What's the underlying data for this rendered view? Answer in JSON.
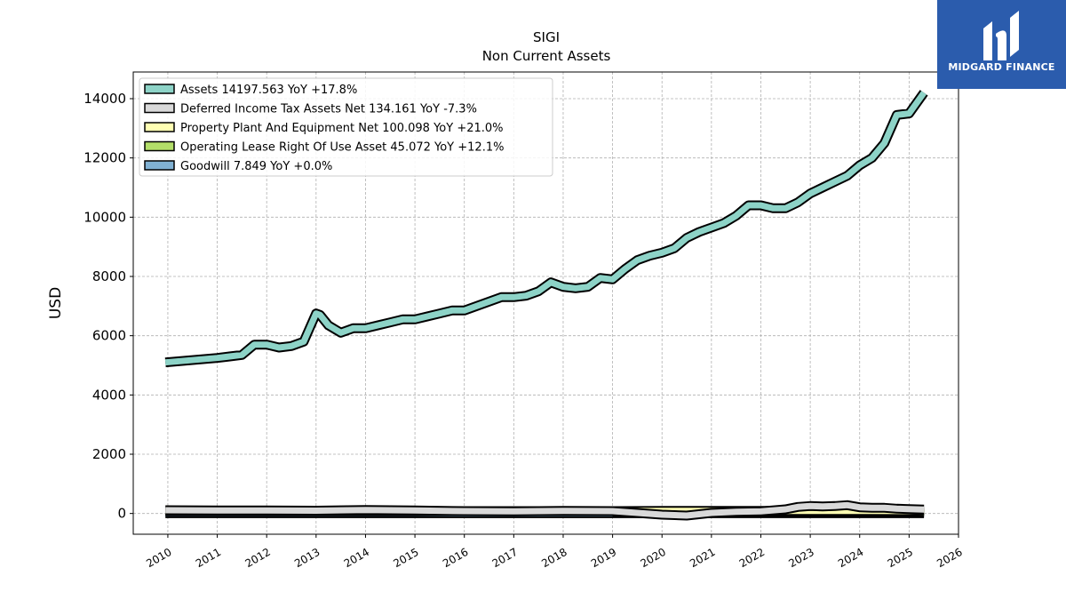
{
  "brand": {
    "name": "MIDGARD FINANCE",
    "bg_color": "#2b5cad",
    "icon": "midgard-logo-icon"
  },
  "chart_data": {
    "type": "line",
    "title": "SIGI",
    "subtitle": "Non Current  Assets",
    "xlabel": "",
    "ylabel": "USD",
    "xlim": [
      2009.3,
      2026.0
    ],
    "ylim": [
      -700,
      14900
    ],
    "x_ticks": [
      "2010",
      "2011",
      "2012",
      "2013",
      "2014",
      "2015",
      "2016",
      "2017",
      "2018",
      "2019",
      "2020",
      "2021",
      "2022",
      "2023",
      "2024",
      "2025",
      "2026"
    ],
    "y_ticks": [
      0,
      2000,
      4000,
      6000,
      8000,
      10000,
      12000,
      14000
    ],
    "y_tick_labels": [
      "0",
      "2000",
      "4000",
      "6000",
      "8000",
      "10000",
      "12000",
      "14000"
    ],
    "grid": true,
    "legend_position": "top-left",
    "series": [
      {
        "name": "Assets",
        "legend": "Assets  14197.563 YoY +17.8%",
        "color": "#8dd3c7",
        "x": [
          2009.95,
          2011.0,
          2011.25,
          2011.5,
          2011.75,
          2012.0,
          2012.25,
          2012.5,
          2012.75,
          2013.0,
          2013.08,
          2013.25,
          2013.5,
          2013.75,
          2014.0,
          2014.25,
          2014.5,
          2014.75,
          2015.0,
          2015.25,
          2015.5,
          2015.75,
          2016.0,
          2016.25,
          2016.5,
          2016.75,
          2017.0,
          2017.25,
          2017.5,
          2017.75,
          2018.0,
          2018.25,
          2018.5,
          2018.75,
          2019.0,
          2019.25,
          2019.5,
          2019.75,
          2020.0,
          2020.25,
          2020.5,
          2020.75,
          2021.0,
          2021.25,
          2021.5,
          2021.75,
          2022.0,
          2022.25,
          2022.5,
          2022.75,
          2023.0,
          2023.25,
          2023.5,
          2023.75,
          2024.0,
          2024.25,
          2024.5,
          2024.75,
          2025.0,
          2025.3
        ],
        "values": [
          5100,
          5250,
          5300,
          5350,
          5700,
          5700,
          5600,
          5650,
          5800,
          6750,
          6700,
          6350,
          6100,
          6250,
          6250,
          6350,
          6450,
          6550,
          6550,
          6650,
          6750,
          6850,
          6850,
          7000,
          7150,
          7300,
          7300,
          7350,
          7500,
          7800,
          7650,
          7600,
          7650,
          7950,
          7900,
          8250,
          8550,
          8700,
          8800,
          8950,
          9300,
          9500,
          9650,
          9800,
          10050,
          10400,
          10400,
          10300,
          10300,
          10500,
          10800,
          11000,
          11200,
          11400,
          11750,
          12000,
          12500,
          13450,
          13500,
          14200
        ]
      },
      {
        "name": "Deferred Income Tax Assets Net",
        "legend": "Deferred Income Tax Assets Net  134.161 YoY -7.3%",
        "color": "#d9d9d9",
        "x": [
          2009.95,
          2011.0,
          2012.0,
          2013.0,
          2014.0,
          2015.0,
          2016.0,
          2017.0,
          2018.0,
          2019.0,
          2020.0,
          2020.5,
          2021.0,
          2021.5,
          2022.0,
          2022.5,
          2022.75,
          2023.0,
          2023.25,
          2023.5,
          2023.75,
          2024.0,
          2024.25,
          2024.5,
          2024.75,
          2025.0,
          2025.3
        ],
        "values": [
          110,
          105,
          100,
          95,
          120,
          100,
          80,
          70,
          90,
          80,
          -40,
          -70,
          20,
          60,
          70,
          140,
          220,
          250,
          240,
          250,
          280,
          210,
          190,
          190,
          160,
          150,
          134
        ]
      },
      {
        "name": "Property Plant And Equipment Net",
        "legend": "Property Plant And Equipment Net  100.098 YoY +21.0%",
        "color": "#ffffb3",
        "x": [
          2009.95,
          2011.0,
          2012.0,
          2013.0,
          2014.0,
          2015.0,
          2016.0,
          2017.0,
          2018.0,
          2019.0,
          2020.0,
          2021.0,
          2022.0,
          2023.0,
          2024.0,
          2025.0,
          2025.3
        ],
        "values": [
          70,
          70,
          70,
          70,
          70,
          75,
          80,
          80,
          80,
          80,
          85,
          90,
          90,
          90,
          85,
          83,
          100
        ]
      },
      {
        "name": "Operating Lease Right Of Use Asset",
        "legend": "Operating Lease Right Of Use Asset  45.072 YoY +12.1%",
        "color": "#b3de69",
        "x": [
          2019.0,
          2020.0,
          2021.0,
          2022.0,
          2023.0,
          2024.0,
          2025.0,
          2025.3
        ],
        "values": [
          60,
          55,
          50,
          45,
          42,
          40,
          40,
          45
        ]
      },
      {
        "name": "Goodwill",
        "legend": "Goodwill  7.849 YoY +0.0%",
        "color": "#80b1d3",
        "x": [
          2009.95,
          2025.3
        ],
        "values": [
          7.849,
          7.849
        ]
      }
    ]
  }
}
